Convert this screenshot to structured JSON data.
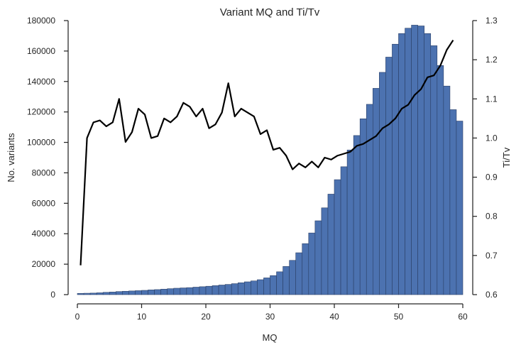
{
  "chart_data": {
    "type": "bar+line",
    "title": "Variant MQ and Ti/Tv",
    "xlabel": "MQ",
    "ylabel_left": "No. variants",
    "ylabel_right": "Ti/Tv",
    "xlim": [
      0,
      60
    ],
    "ylim_left": [
      0,
      180000
    ],
    "ylim_right": [
      0.6,
      1.3
    ],
    "x_ticks": [
      "0",
      "10",
      "20",
      "30",
      "40",
      "50",
      "60"
    ],
    "y_left_ticks": [
      "0",
      "20000",
      "40000",
      "60000",
      "80000",
      "100000",
      "120000",
      "140000",
      "160000",
      "180000"
    ],
    "y_right_ticks": [
      "0.6",
      "0.7",
      "0.8",
      "0.9",
      "1.0",
      "1.1",
      "1.2",
      "1.3"
    ],
    "grid": false,
    "colors": {
      "bars": "#4c72b0",
      "bar_edge": "#2a3f66",
      "line": "#000000",
      "axis": "#262626"
    },
    "histogram": {
      "name": "No. variants",
      "bin_start": 0,
      "bin_width": 1,
      "counts": [
        800,
        900,
        1000,
        1200,
        1500,
        1700,
        2000,
        2200,
        2400,
        2600,
        2800,
        3100,
        3300,
        3600,
        3900,
        4200,
        4400,
        4600,
        4900,
        5200,
        5500,
        5900,
        6300,
        6700,
        7200,
        7800,
        8400,
        9000,
        9800,
        11000,
        12500,
        15000,
        18500,
        22500,
        27500,
        33500,
        40500,
        48500,
        57000,
        66000,
        75500,
        84000,
        95000,
        104500,
        115500,
        125000,
        135500,
        146000,
        156000,
        164500,
        171500,
        175000,
        177000,
        176500,
        171500,
        163500,
        150500,
        137000,
        121500,
        114000
      ]
    },
    "line": {
      "name": "Ti/Tv",
      "x": [
        0.5,
        1.5,
        2.5,
        3.5,
        4.5,
        5.5,
        6.5,
        7.5,
        8.5,
        9.5,
        10.5,
        11.5,
        12.5,
        13.5,
        14.5,
        15.5,
        16.5,
        17.5,
        18.5,
        19.5,
        20.5,
        21.5,
        22.5,
        23.5,
        24.5,
        25.5,
        26.5,
        27.5,
        28.5,
        29.5,
        30.5,
        31.5,
        32.5,
        33.5,
        34.5,
        35.5,
        36.5,
        37.5,
        38.5,
        39.5,
        40.5,
        41.5,
        42.5,
        43.5,
        44.5,
        45.5,
        46.5,
        47.5,
        48.5,
        49.5,
        50.5,
        51.5,
        52.5,
        53.5,
        54.5,
        55.5,
        56.5,
        57.5,
        58.5
      ],
      "y": [
        0.675,
        1.0,
        1.04,
        1.045,
        1.03,
        1.04,
        1.1,
        0.99,
        1.015,
        1.075,
        1.06,
        1.0,
        1.005,
        1.05,
        1.04,
        1.055,
        1.09,
        1.08,
        1.055,
        1.075,
        1.025,
        1.035,
        1.065,
        1.14,
        1.055,
        1.075,
        1.065,
        1.055,
        1.01,
        1.02,
        0.97,
        0.975,
        0.955,
        0.92,
        0.935,
        0.925,
        0.94,
        0.925,
        0.95,
        0.945,
        0.955,
        0.96,
        0.965,
        0.98,
        0.985,
        0.995,
        1.005,
        1.025,
        1.035,
        1.05,
        1.075,
        1.085,
        1.11,
        1.125,
        1.155,
        1.16,
        1.185,
        1.225,
        1.25
      ]
    }
  }
}
